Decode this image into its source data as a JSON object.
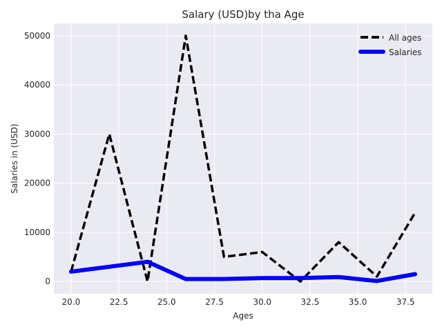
{
  "chart_data": {
    "type": "line",
    "title": "Salary (USD)by tha Age",
    "xlabel": "Ages",
    "ylabel": "Salaries in (USD)",
    "x": [
      20,
      22,
      24,
      26,
      28,
      30,
      32,
      34,
      36,
      38
    ],
    "series": [
      {
        "name": "All ages",
        "color": "#000000",
        "style": "dashed",
        "values": [
          2000,
          30000,
          0,
          50000,
          5000,
          6000,
          0,
          8000,
          1000,
          14000
        ]
      },
      {
        "name": "Salaries",
        "color": "#0000ff",
        "style": "solid",
        "values": [
          2000,
          3000,
          4000,
          500,
          500,
          700,
          700,
          900,
          100,
          1500
        ]
      }
    ],
    "xlim": [
      19.1,
      38.9
    ],
    "ylim": [
      -2500,
      52500
    ],
    "xticks": [
      20.0,
      22.5,
      25.0,
      27.5,
      30.0,
      32.5,
      35.0,
      37.5
    ],
    "xtick_labels": [
      "20.0",
      "22.5",
      "25.0",
      "27.5",
      "30.0",
      "32.5",
      "35.0",
      "37.5"
    ],
    "yticks": [
      0,
      10000,
      20000,
      30000,
      40000,
      50000
    ],
    "ytick_labels": [
      "0",
      "10000",
      "20000",
      "30000",
      "40000",
      "50000"
    ],
    "grid": true,
    "legend_position": "top-right",
    "plot_background": "#eaeaf2",
    "grid_color": "#ffffff"
  }
}
